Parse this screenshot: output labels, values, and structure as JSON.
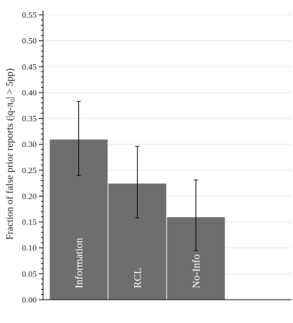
{
  "chart_data": {
    "type": "bar",
    "categories": [
      "Information",
      "RCL",
      "No-Info"
    ],
    "values": [
      0.31,
      0.225,
      0.16
    ],
    "error_low": [
      0.24,
      0.158,
      0.095
    ],
    "error_high": [
      0.383,
      0.296,
      0.231
    ],
    "ylabel": "Fraction of false prior reports (|q-π₀| > 5pp)",
    "ylim": [
      0,
      0.55
    ],
    "yticks": [
      "0.00",
      "0.05",
      "0.10",
      "0.15",
      "0.20",
      "0.25",
      "0.30",
      "0.35",
      "0.40",
      "0.45",
      "0.50",
      "0.55"
    ],
    "grid": true,
    "bar_color": "#6e6e6e",
    "grid_color": "#e8e8e8"
  }
}
